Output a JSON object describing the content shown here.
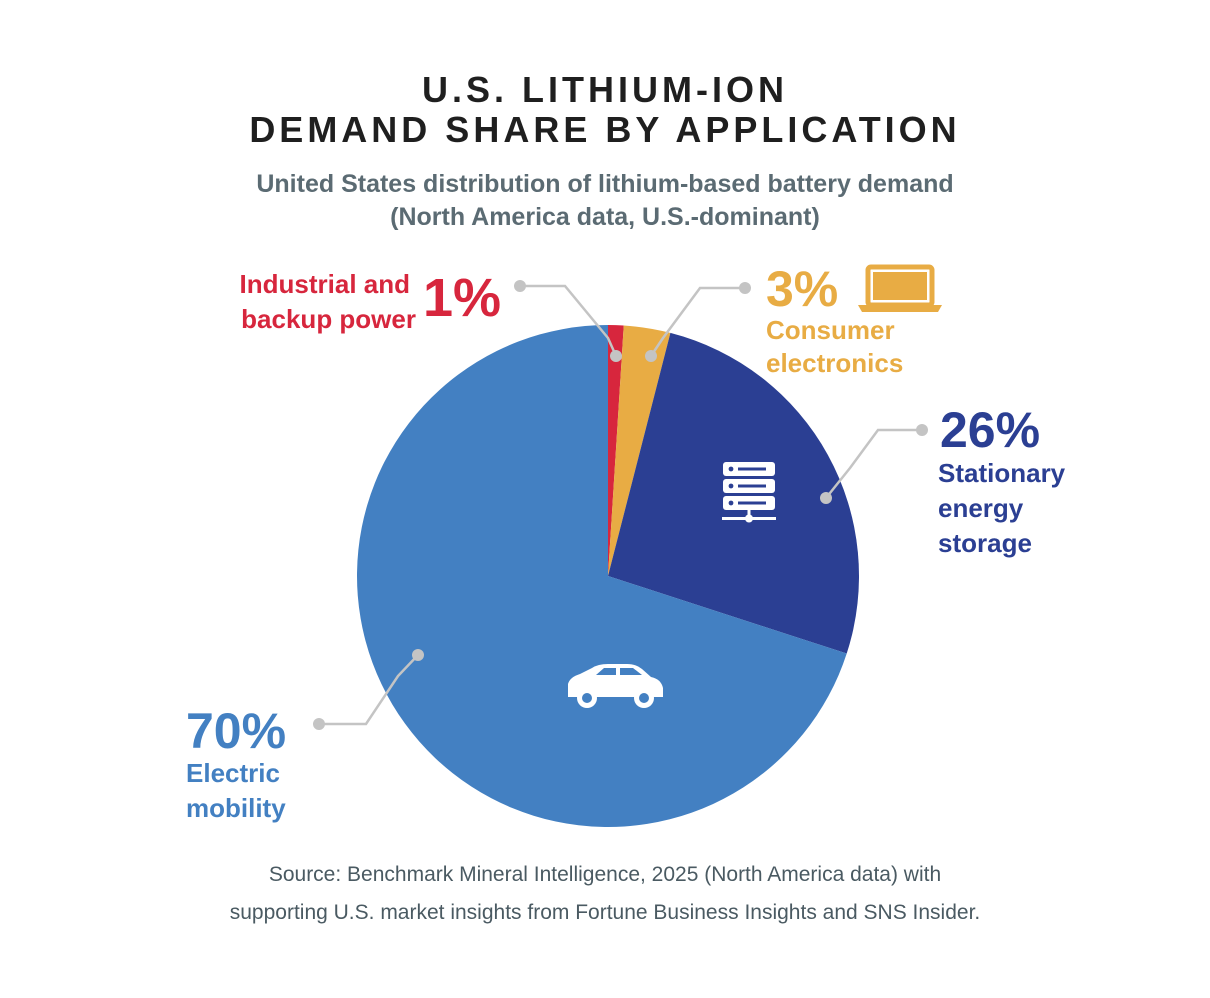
{
  "title_line1": "U.S. LITHIUM-ION",
  "title_line2": "DEMAND SHARE BY APPLICATION",
  "subtitle_line1": "United States distribution of lithium-based battery demand",
  "subtitle_line2": "(North America data, U.S.-dominant)",
  "source_line1": "Source: Benchmark Mineral Intelligence, 2025 (North America data) with",
  "source_line2": "supporting U.S. market insights from Fortune Business Insights and SNS Insider.",
  "chart_data": {
    "type": "pie",
    "start_angle_deg": 0,
    "direction": "clockwise",
    "slices": [
      {
        "label": "Industrial and backup power",
        "label_lines": [
          "Industrial and",
          "backup power"
        ],
        "value": 1,
        "value_label": "1%",
        "color": "#d7263d",
        "icon": ""
      },
      {
        "label": "Consumer electronics",
        "label_lines": [
          "Consumer",
          "electronics"
        ],
        "value": 3,
        "value_label": "3%",
        "color": "#e8ac44",
        "icon": "laptop-icon"
      },
      {
        "label": "Stationary energy storage",
        "label_lines": [
          "Stationary",
          "energy",
          "storage"
        ],
        "value": 26,
        "value_label": "26%",
        "color": "#2b3f93",
        "icon": "server-icon"
      },
      {
        "label": "Electric mobility",
        "label_lines": [
          "Electric",
          "mobility"
        ],
        "value": 70,
        "value_label": "70%",
        "color": "#4380c2",
        "icon": "car-icon"
      }
    ],
    "leader_color": "#c4c4c4"
  }
}
